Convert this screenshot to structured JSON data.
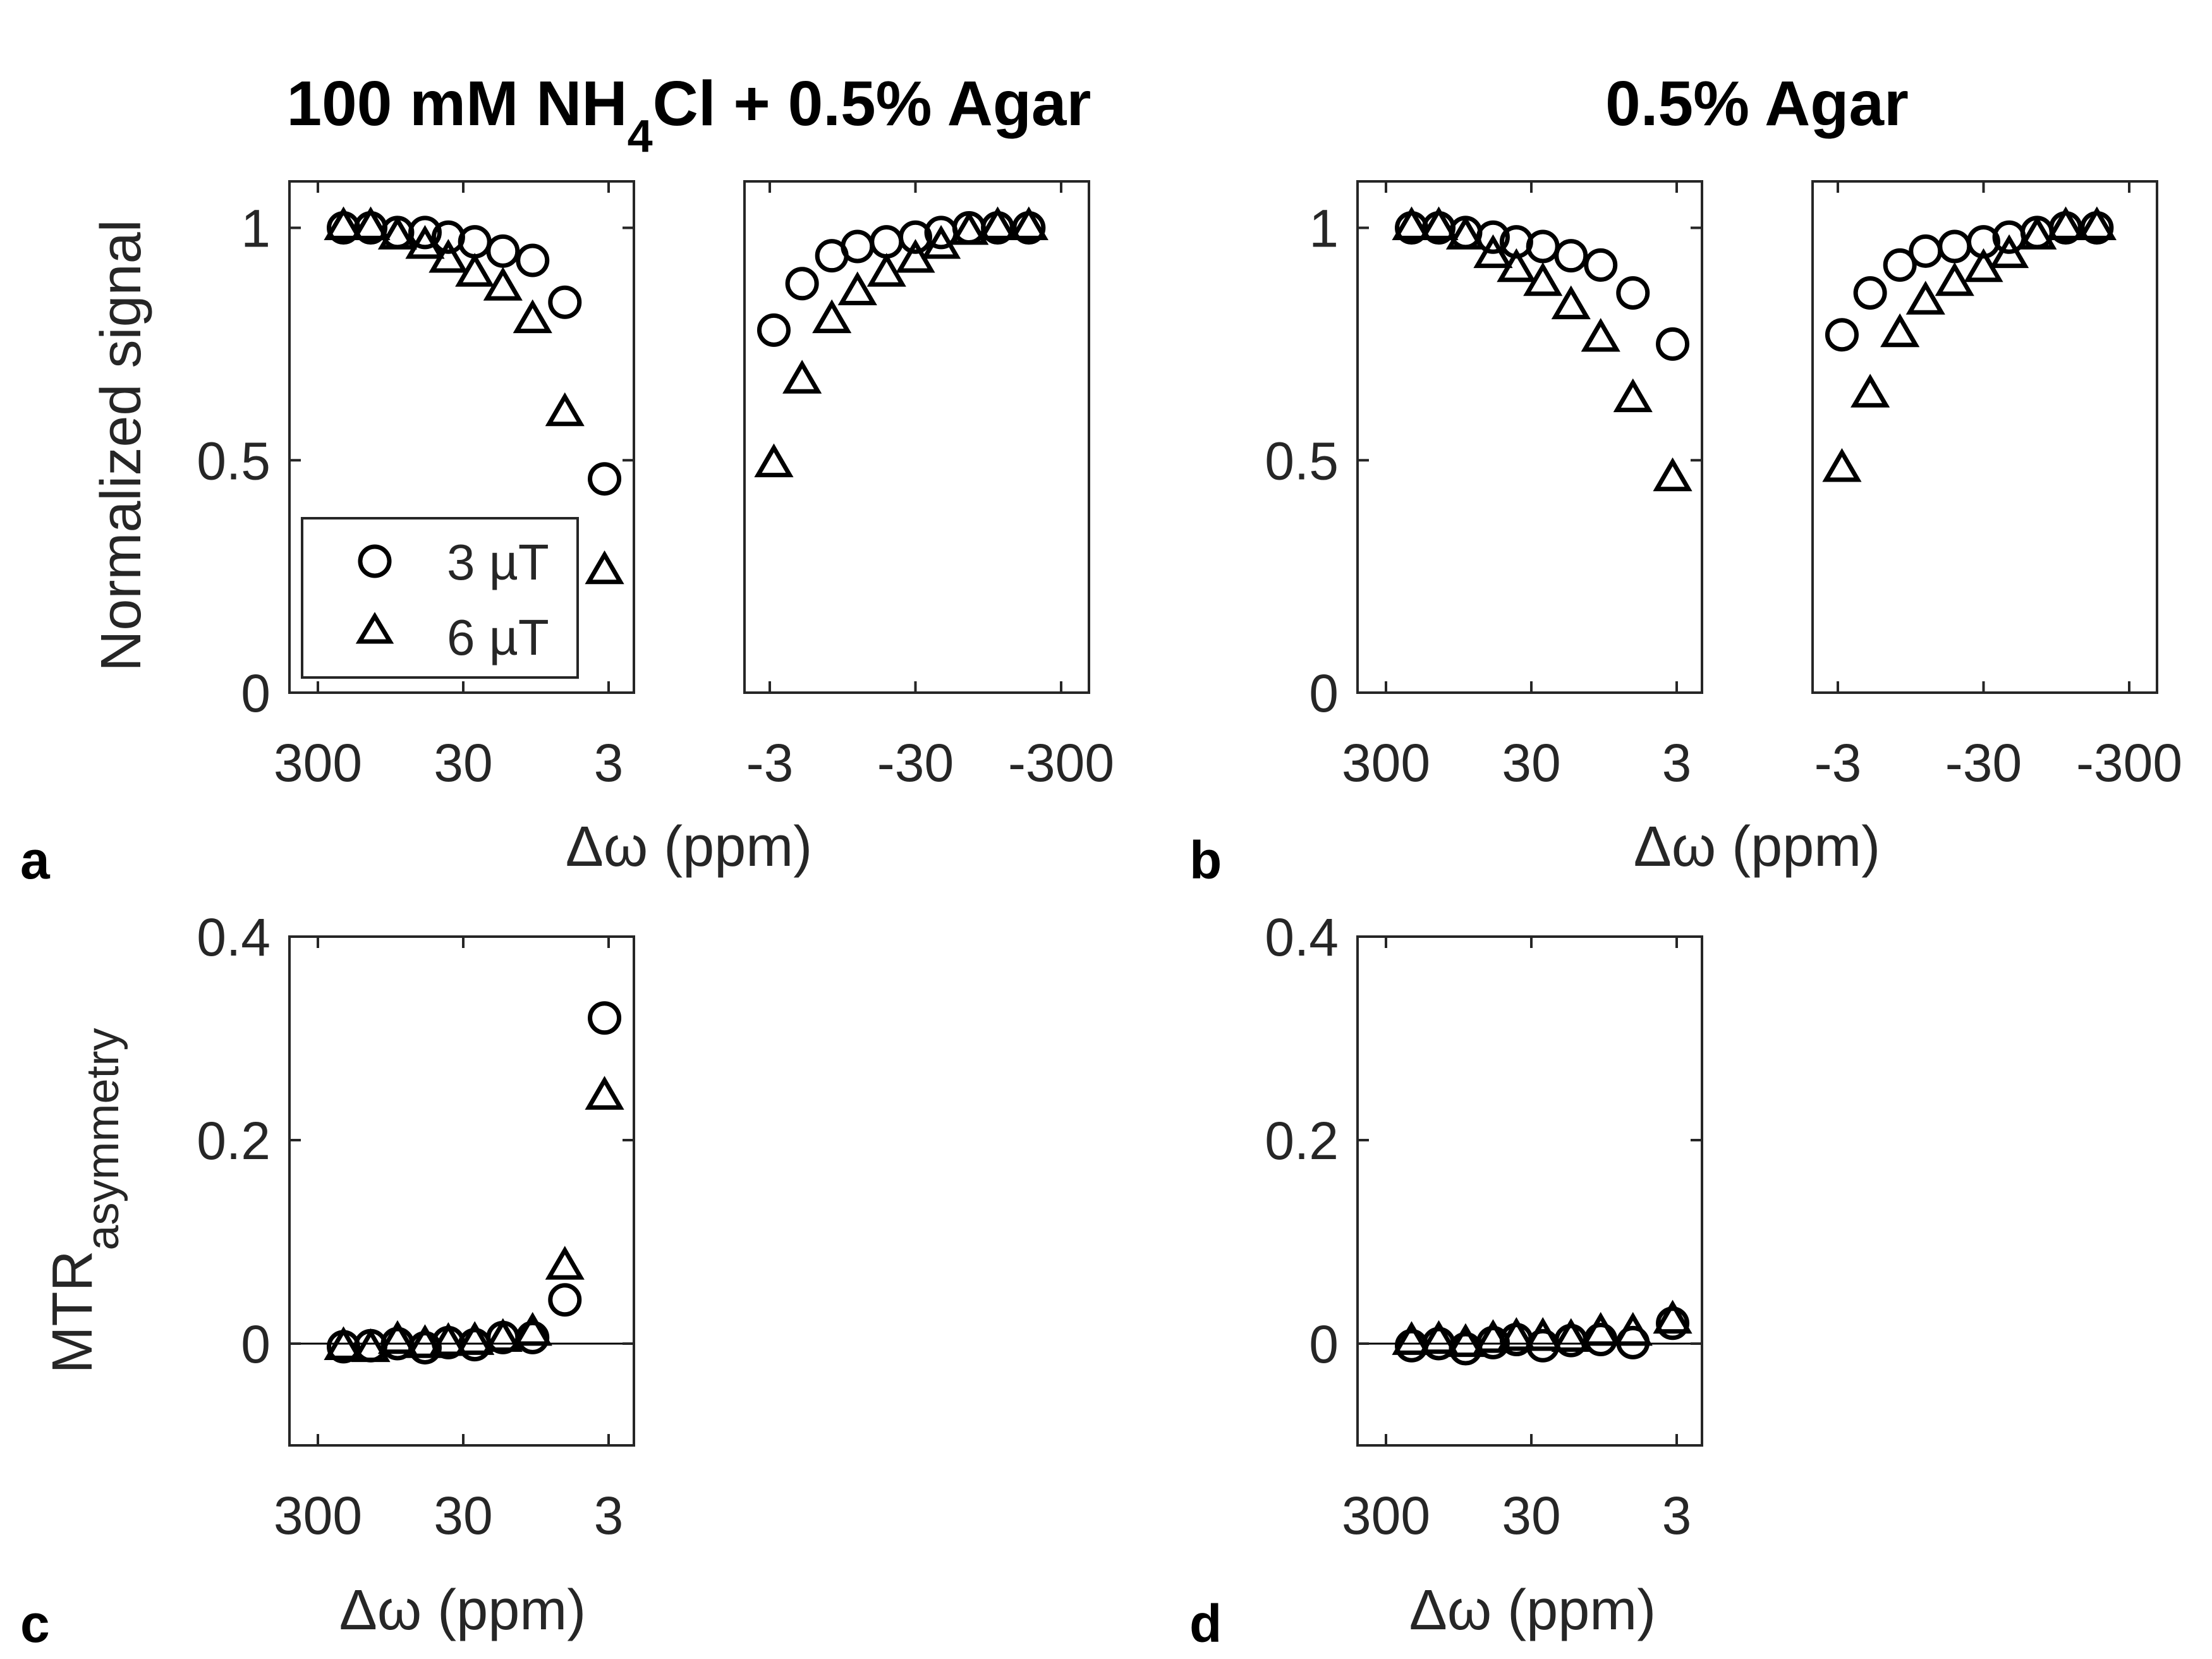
{
  "colors": {
    "axis": "#262626",
    "marker": "#000000",
    "background": "#ffffff"
  },
  "titles": {
    "left_main": "100 mM NH",
    "left_sub": "4",
    "left_rest": "Cl + 0.5% Agar",
    "right": "0.5% Agar"
  },
  "panel_letters": [
    "a",
    "b",
    "c",
    "d"
  ],
  "legend": {
    "items": [
      {
        "marker": "circle",
        "label": "3 µT"
      },
      {
        "marker": "triangle",
        "label": "6 µT"
      }
    ]
  },
  "chart_data": [
    {
      "id": "a-positive",
      "panel": "a",
      "type": "scatter",
      "xscale": "log",
      "xdir": "reversed",
      "x_ticks": [
        300,
        30,
        3
      ],
      "x_tick_labels": [
        "300",
        "30",
        "3"
      ],
      "ylim": [
        0,
        1.1
      ],
      "y_ticks": [
        0,
        0.5,
        1
      ],
      "y_tick_labels": [
        "0",
        "0.5",
        "1"
      ],
      "ylabel": "Normalized signal",
      "xlabel": "Δω (ppm)",
      "x": [
        200,
        130,
        85,
        55,
        38,
        25,
        16,
        10,
        6,
        3.2
      ],
      "series": [
        {
          "name": "3 µT",
          "marker": "circle",
          "values": [
            1.0,
            1.0,
            0.99,
            0.99,
            0.98,
            0.97,
            0.95,
            0.93,
            0.84,
            0.46
          ]
        },
        {
          "name": "6 µT",
          "marker": "triangle",
          "values": [
            1.0,
            1.0,
            0.98,
            0.96,
            0.93,
            0.9,
            0.87,
            0.8,
            0.6,
            0.26
          ]
        }
      ]
    },
    {
      "id": "a-negative",
      "panel": "a",
      "type": "scatter",
      "xscale": "log",
      "x_ticks": [
        -3,
        -30,
        -300
      ],
      "x_tick_labels": [
        "-3",
        "-30",
        "-300"
      ],
      "ylim": [
        0,
        1.1
      ],
      "x": [
        -3.2,
        -5,
        -8,
        -12,
        -19,
        -30,
        -45,
        -70,
        -110,
        -180
      ],
      "series": [
        {
          "name": "3 µT",
          "marker": "circle",
          "values": [
            0.78,
            0.88,
            0.94,
            0.96,
            0.97,
            0.98,
            0.99,
            1.0,
            1.0,
            1.0
          ]
        },
        {
          "name": "6 µT",
          "marker": "triangle",
          "values": [
            0.49,
            0.67,
            0.8,
            0.86,
            0.9,
            0.93,
            0.96,
            0.99,
            1.0,
            1.0
          ]
        }
      ]
    },
    {
      "id": "b-positive",
      "panel": "b",
      "type": "scatter",
      "xscale": "log",
      "xdir": "reversed",
      "x_ticks": [
        300,
        30,
        3
      ],
      "x_tick_labels": [
        "300",
        "30",
        "3"
      ],
      "ylim": [
        0,
        1.1
      ],
      "y_ticks": [
        0,
        0.5,
        1
      ],
      "y_tick_labels": [
        "0",
        "0.5",
        "1"
      ],
      "xlabel": "Δω (ppm)",
      "x": [
        200,
        130,
        85,
        55,
        38,
        25,
        16,
        10,
        6,
        3.2
      ],
      "series": [
        {
          "name": "3 µT",
          "marker": "circle",
          "values": [
            1.0,
            1.0,
            0.99,
            0.98,
            0.97,
            0.96,
            0.94,
            0.92,
            0.86,
            0.75
          ]
        },
        {
          "name": "6 µT",
          "marker": "triangle",
          "values": [
            1.0,
            1.0,
            0.98,
            0.94,
            0.91,
            0.88,
            0.83,
            0.76,
            0.63,
            0.46
          ]
        }
      ]
    },
    {
      "id": "b-negative",
      "panel": "b",
      "type": "scatter",
      "xscale": "log",
      "x_ticks": [
        -3,
        -30,
        -300
      ],
      "x_tick_labels": [
        "-3",
        "-30",
        "-300"
      ],
      "ylim": [
        0,
        1.1
      ],
      "x": [
        -3.2,
        -5,
        -8,
        -12,
        -19,
        -30,
        -45,
        -70,
        -110,
        -180
      ],
      "series": [
        {
          "name": "3 µT",
          "marker": "circle",
          "values": [
            0.77,
            0.86,
            0.92,
            0.95,
            0.96,
            0.97,
            0.98,
            0.99,
            1.0,
            1.0
          ]
        },
        {
          "name": "6 µT",
          "marker": "triangle",
          "values": [
            0.48,
            0.64,
            0.77,
            0.84,
            0.88,
            0.91,
            0.94,
            0.98,
            1.0,
            1.0
          ]
        }
      ]
    },
    {
      "id": "c",
      "panel": "c",
      "type": "scatter",
      "xscale": "log",
      "xdir": "reversed",
      "x_ticks": [
        300,
        30,
        3
      ],
      "x_tick_labels": [
        "300",
        "30",
        "3"
      ],
      "ylim": [
        -0.1,
        0.4
      ],
      "y_ticks": [
        0,
        0.2,
        0.4
      ],
      "y_tick_labels": [
        "0",
        "0.2",
        "0.4"
      ],
      "ylabel": "MTR",
      "ylabel_sub": "asymmetry",
      "xlabel": "Δω (ppm)",
      "zero_line": true,
      "x": [
        200,
        130,
        85,
        55,
        38,
        25,
        16,
        10,
        6,
        3.2
      ],
      "series": [
        {
          "name": "3 µT",
          "marker": "circle",
          "values": [
            -0.003,
            -0.002,
            0.0,
            -0.004,
            0.001,
            -0.001,
            0.006,
            0.006,
            0.043,
            0.32
          ]
        },
        {
          "name": "6 µT",
          "marker": "triangle",
          "values": [
            -0.004,
            -0.006,
            0.002,
            -0.002,
            0.0,
            0.001,
            0.004,
            0.01,
            0.075,
            0.242
          ]
        }
      ]
    },
    {
      "id": "d",
      "panel": "d",
      "type": "scatter",
      "xscale": "log",
      "xdir": "reversed",
      "x_ticks": [
        300,
        30,
        3
      ],
      "x_tick_labels": [
        "300",
        "30",
        "3"
      ],
      "ylim": [
        -0.1,
        0.4
      ],
      "y_ticks": [
        0,
        0.2,
        0.4
      ],
      "y_tick_labels": [
        "0",
        "0.2",
        "0.4"
      ],
      "xlabel": "Δω (ppm)",
      "zero_line": true,
      "x": [
        200,
        130,
        85,
        55,
        38,
        25,
        16,
        10,
        6,
        3.2
      ],
      "series": [
        {
          "name": "3 µT",
          "marker": "circle",
          "values": [
            -0.002,
            0.0,
            -0.005,
            0.001,
            0.004,
            -0.002,
            0.003,
            0.004,
            0.001,
            0.02
          ]
        },
        {
          "name": "6 µT",
          "marker": "triangle",
          "values": [
            0.001,
            0.002,
            -0.001,
            0.003,
            0.005,
            0.005,
            0.004,
            0.01,
            0.01,
            0.022
          ]
        }
      ]
    }
  ]
}
